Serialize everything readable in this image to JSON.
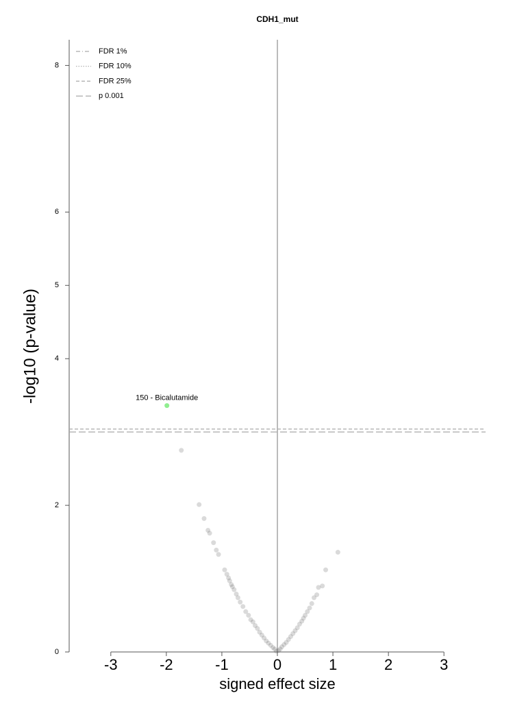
{
  "chart_data": {
    "type": "scatter",
    "title": "CDH1_mut",
    "xlabel": "signed effect size",
    "ylabel": "-log10 (p-value)",
    "xlim": [
      -3.75,
      3.75
    ],
    "ylim": [
      0,
      8.35
    ],
    "xticks": [
      -3,
      -2,
      -1,
      0,
      1,
      2,
      3
    ],
    "yticks": [
      0,
      2,
      4,
      5,
      6,
      8
    ],
    "points": {
      "color": "#555555",
      "x": [
        -1.73,
        -1.41,
        -1.32,
        -1.25,
        -1.22,
        -1.15,
        -1.1,
        -1.06,
        -0.95,
        -0.91,
        -0.88,
        -0.86,
        -0.83,
        -0.81,
        -0.78,
        -0.74,
        -0.71,
        -0.67,
        -0.62,
        -0.57,
        -0.52,
        -0.48,
        -0.44,
        -0.4,
        -0.36,
        -0.32,
        -0.28,
        -0.24,
        -0.2,
        -0.16,
        -0.12,
        -0.08,
        -0.05,
        -0.02,
        1.09,
        0.87,
        0.81,
        0.74,
        0.71,
        0.66,
        0.62,
        0.58,
        0.54,
        0.5,
        0.47,
        0.44,
        0.4,
        0.36,
        0.32,
        0.28,
        0.24,
        0.2,
        0.16,
        0.12,
        0.08,
        0.05,
        0.02
      ],
      "y": [
        2.75,
        2.01,
        1.82,
        1.66,
        1.62,
        1.49,
        1.39,
        1.33,
        1.12,
        1.06,
        1.01,
        0.97,
        0.92,
        0.89,
        0.85,
        0.79,
        0.74,
        0.68,
        0.62,
        0.55,
        0.5,
        0.44,
        0.41,
        0.36,
        0.32,
        0.27,
        0.23,
        0.19,
        0.15,
        0.12,
        0.09,
        0.06,
        0.04,
        0.01,
        1.36,
        1.12,
        0.9,
        0.88,
        0.78,
        0.74,
        0.66,
        0.6,
        0.55,
        0.5,
        0.46,
        0.42,
        0.38,
        0.33,
        0.29,
        0.25,
        0.21,
        0.17,
        0.13,
        0.1,
        0.07,
        0.04,
        0.02
      ]
    },
    "highlight": {
      "x": -1.99,
      "y": 3.36,
      "label": "150 - Bicalutamide",
      "color": "#90ee90"
    },
    "thresholds": [
      {
        "name": "FDR 1%",
        "style": "dashdot",
        "value": null
      },
      {
        "name": "FDR 10%",
        "style": "dotted",
        "value": null
      },
      {
        "name": "FDR 25%",
        "style": "dashed",
        "value": 3.04
      },
      {
        "name": "p 0.001",
        "style": "longdash",
        "value": 3.0
      }
    ],
    "zero_line_color": "#bbbbbb"
  }
}
